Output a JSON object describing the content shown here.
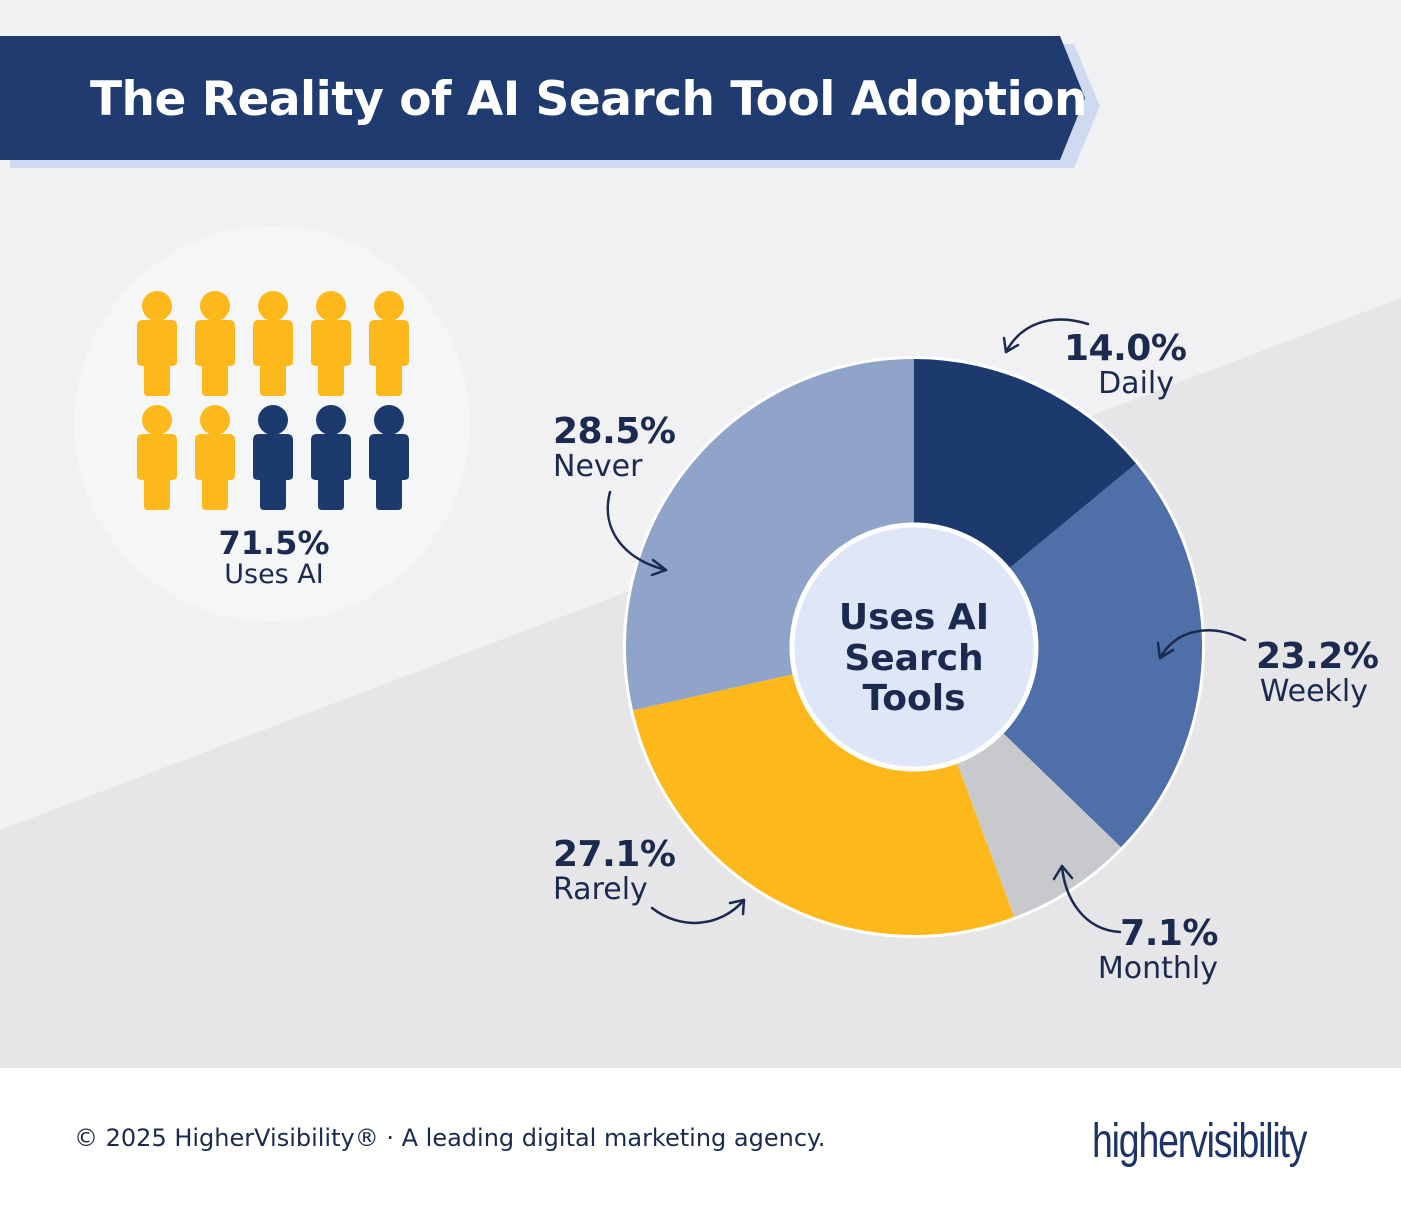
{
  "title": "The Reality of AI Search Tool Adoption",
  "people": {
    "pct": "71.5%",
    "label": "Uses AI",
    "filled": 7,
    "total": 10,
    "filled_color": "#fdb81c",
    "empty_color": "#1c3a6e"
  },
  "chart_data": {
    "type": "pie",
    "donut": true,
    "center_label": "Uses AI Search Tools",
    "categories": [
      "Daily",
      "Weekly",
      "Monthly",
      "Rarely",
      "Never"
    ],
    "values": [
      14.0,
      23.2,
      7.1,
      27.1,
      28.5
    ],
    "value_labels": [
      "14.0%",
      "23.2%",
      "7.1%",
      "27.1%",
      "28.5%"
    ],
    "colors": [
      "#1c3a6e",
      "#4f6fa8",
      "#c8c9cc",
      "#fdb81c",
      "#8fa4c8"
    ],
    "unit": "%"
  },
  "colors": {
    "banner": "#1f3b6f",
    "banner_shadow": "#cfdaf0",
    "text": "#1b2a4e"
  },
  "footer": {
    "text": "© 2025 HigherVisibility® · A leading digital marketing agency.",
    "logo": "highervisibility"
  }
}
